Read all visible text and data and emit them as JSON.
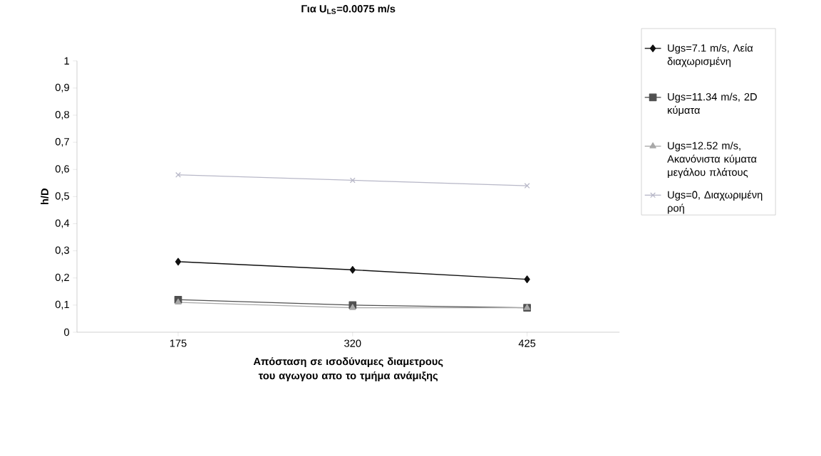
{
  "chart_data": {
    "type": "line",
    "title": "Για U$_{LS}$=0.0075 m/s",
    "xlabel": "Απόσταση σε ισοδύναμες διαμετρους του αγωγου απο το τμήμα ανάμιξης",
    "ylabel": "h/D",
    "categories": [
      "175",
      "320",
      "425"
    ],
    "series": [
      {
        "name": "Ugs=7.1 m/s, Λεία διαχωρισμένη",
        "color": "#101010",
        "marker": "diamond",
        "values": [
          0.26,
          0.23,
          0.195
        ]
      },
      {
        "name": "Ugs=11.34 m/s, 2D κύματα",
        "color": "#505050",
        "marker": "square",
        "values": [
          0.12,
          0.1,
          0.09
        ]
      },
      {
        "name": "Ugs=12.52 m/s, Ακανόνιστα κύματα μεγάλου πλάτους",
        "color": "#a8a8a8",
        "marker": "triangle",
        "values": [
          0.11,
          0.09,
          0.09
        ]
      },
      {
        "name": "Ugs=0, Διαχωριμένη ροή",
        "color": "#b8b8c8",
        "marker": "cross",
        "values": [
          0.58,
          0.56,
          0.54
        ]
      }
    ],
    "ylim": [
      0,
      1
    ],
    "yticks": [
      {
        "value": 0,
        "label": "0"
      },
      {
        "value": 0.1,
        "label": "0,1"
      },
      {
        "value": 0.2,
        "label": "0,2"
      },
      {
        "value": 0.3,
        "label": "0,3"
      },
      {
        "value": 0.4,
        "label": "0,4"
      },
      {
        "value": 0.5,
        "label": "0,5"
      },
      {
        "value": 0.6,
        "label": "0,6"
      },
      {
        "value": 0.7,
        "label": "0,7"
      },
      {
        "value": 0.8,
        "label": "0,8"
      },
      {
        "value": 0.9,
        "label": "0,9"
      },
      {
        "value": 1,
        "label": "1"
      }
    ],
    "grid": false,
    "legend": "right",
    "line_style": "solid"
  }
}
